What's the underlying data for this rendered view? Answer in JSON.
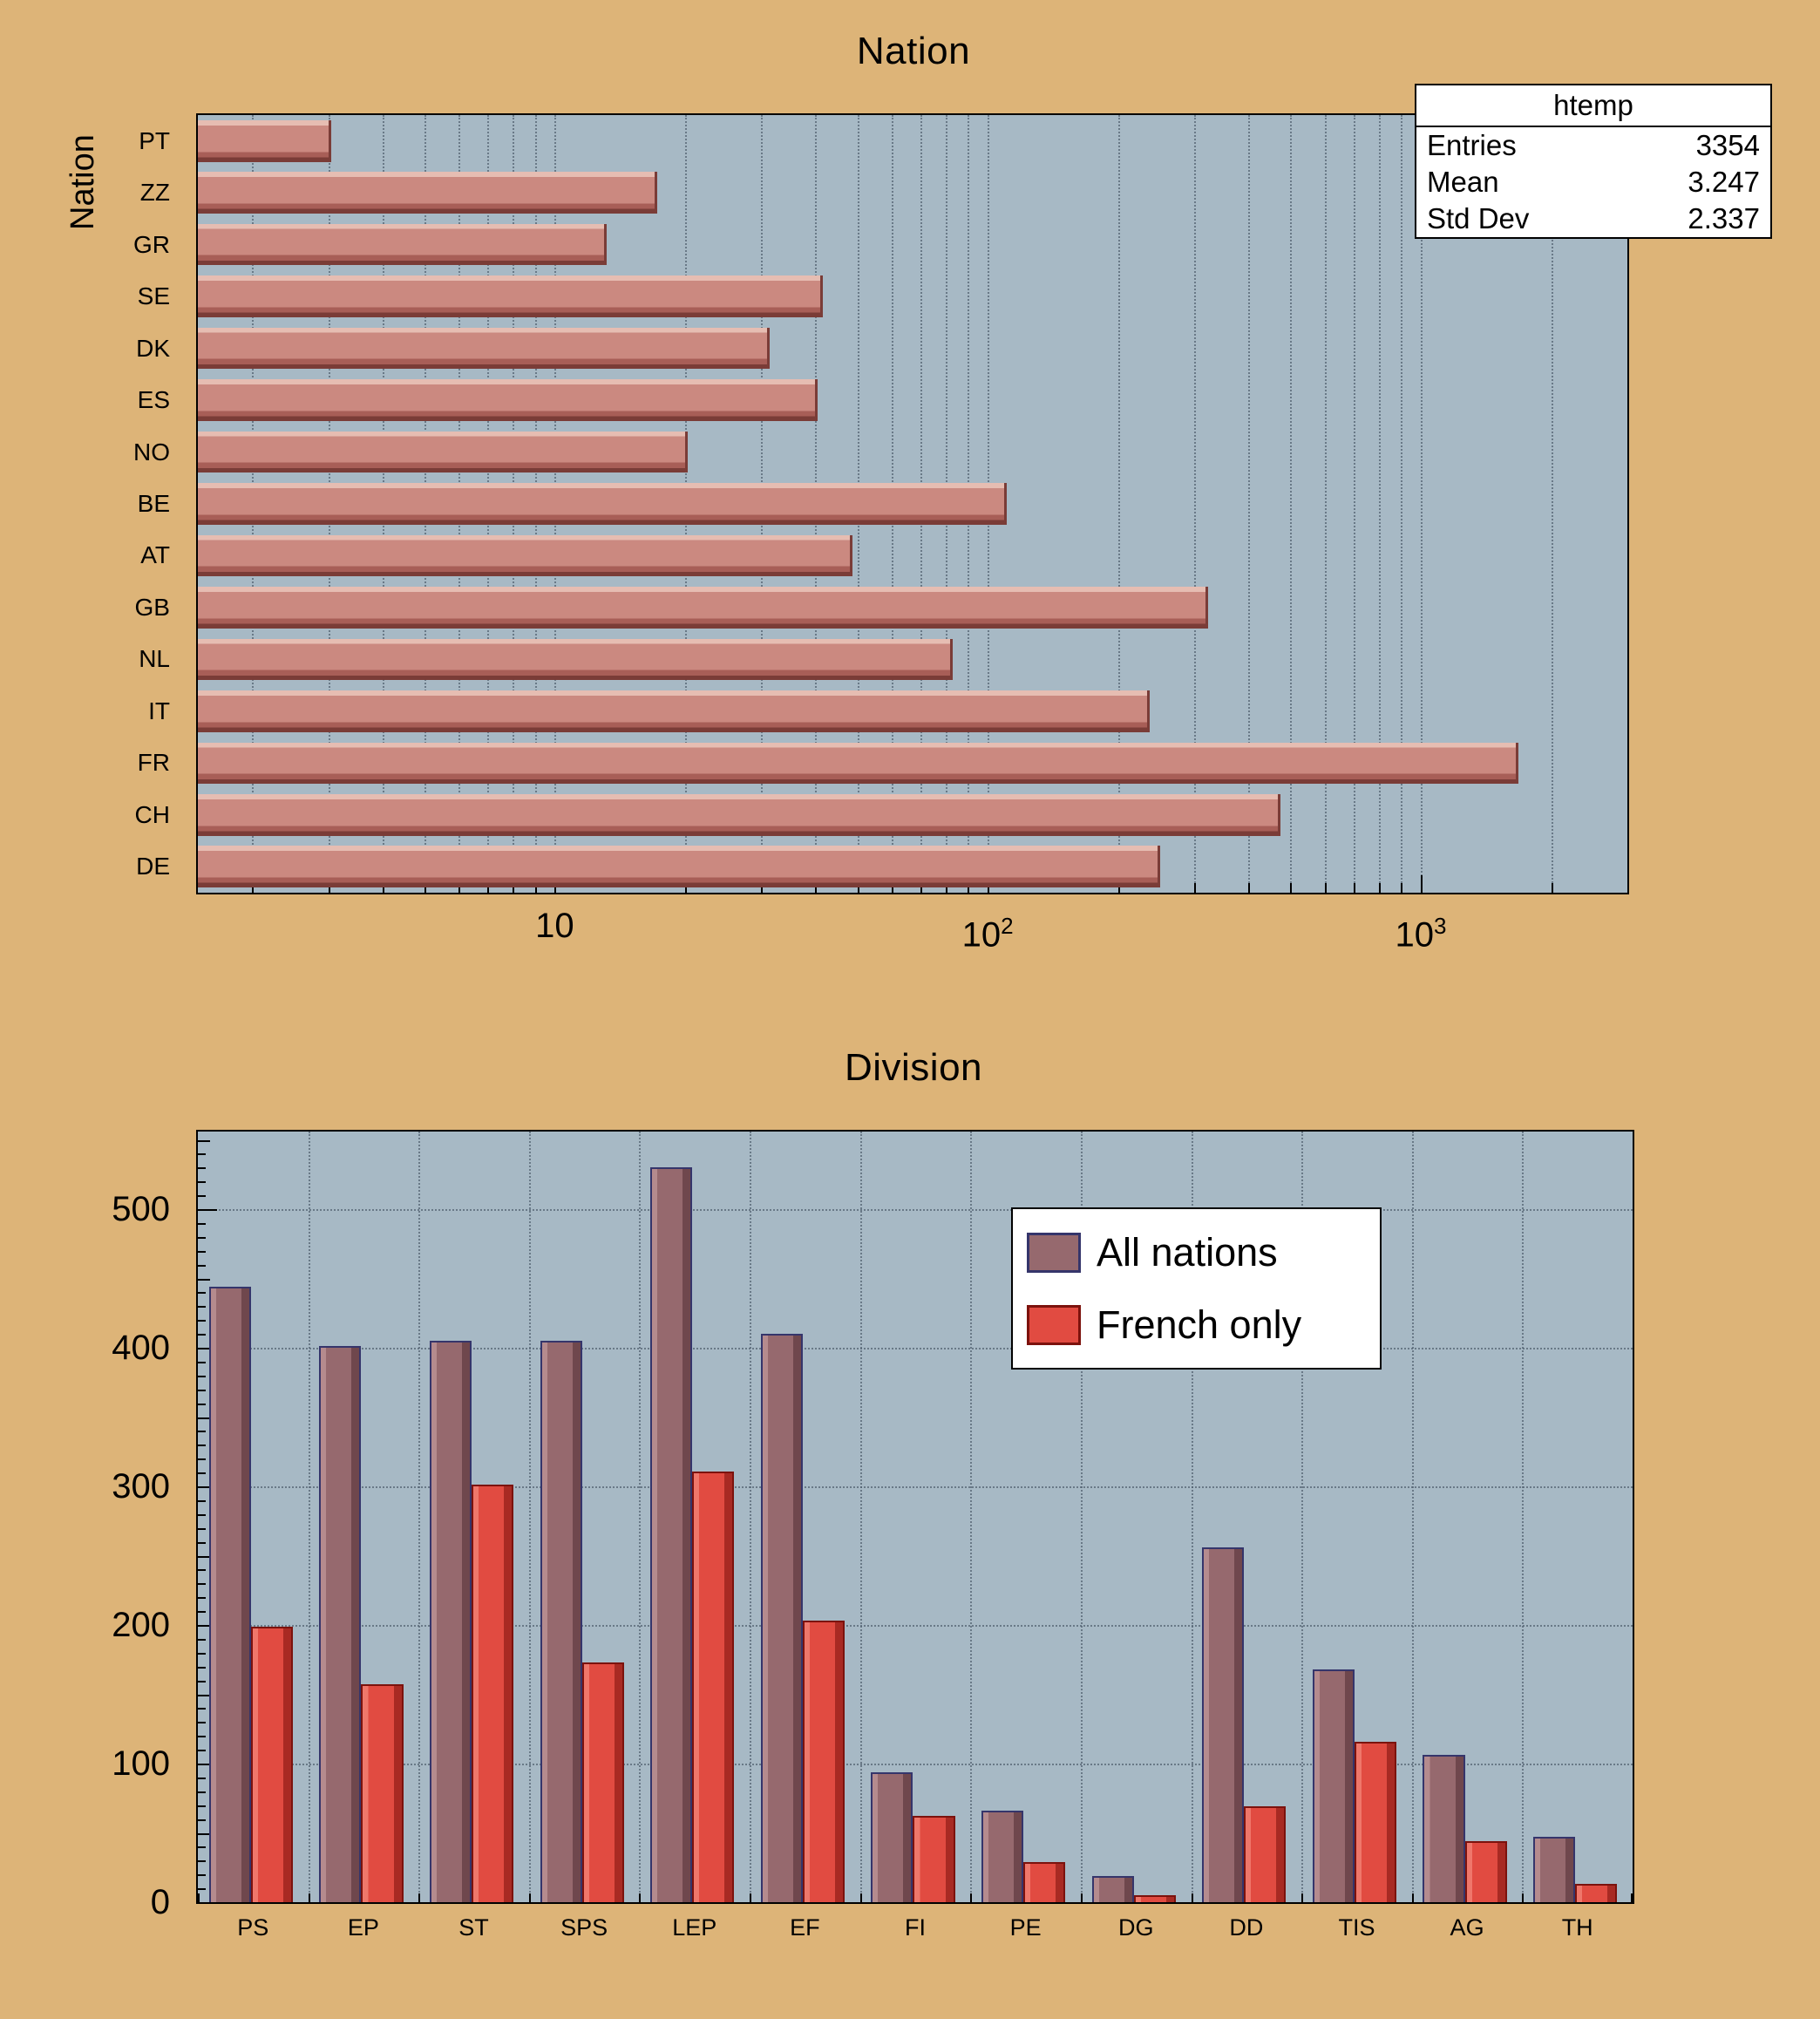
{
  "colors": {
    "page_bg": "#ddb478",
    "frame_bg": "#a7b9c5",
    "grid": "#4f5f6e",
    "stats_bg": "#ffffff",
    "nation_bar_fill": "#cb8980",
    "nation_bar_highlight": "#e6bdb2",
    "nation_bar_mid": "#a85e57",
    "nation_bar_shadow": "#7a3c37",
    "all_nations_fill": "#96696e",
    "all_nations_highlight": "#b58b8e",
    "all_nations_shadow": "#6f474d",
    "all_nations_border": "#35356b",
    "french_fill": "#e14b41",
    "french_highlight": "#ef776b",
    "french_shadow": "#a82a23",
    "french_border": "#7c120d"
  },
  "chart_data": [
    {
      "type": "bar",
      "orientation": "horizontal",
      "title": "Nation",
      "ylabel": "Nation",
      "x_scale": "log",
      "xlim": [
        1.5,
        3000
      ],
      "x_tick_values": [
        10,
        100,
        1000
      ],
      "x_tick_labels": [
        "10",
        "10^2",
        "10^3"
      ],
      "grid": true,
      "categories_top_to_bottom": [
        "PT",
        "ZZ",
        "GR",
        "SE",
        "DK",
        "ES",
        "NO",
        "BE",
        "AT",
        "GB",
        "NL",
        "IT",
        "FR",
        "CH",
        "DE"
      ],
      "values": [
        3,
        17,
        13,
        41,
        31,
        40,
        20,
        109,
        48,
        318,
        82,
        233,
        1660,
        468,
        247
      ],
      "stats_name": "htemp",
      "stats_rows": [
        {
          "label": "Entries",
          "value": "3354"
        },
        {
          "label": "Mean",
          "value": "3.247"
        },
        {
          "label": "Std Dev",
          "value": "2.337"
        }
      ],
      "stats": {
        "entries": 3354,
        "mean": 3.247,
        "std_dev": 2.337
      }
    },
    {
      "type": "bar",
      "orientation": "vertical",
      "title": "Division",
      "ylim": [
        0,
        556
      ],
      "y_major_ticks": [
        0,
        100,
        200,
        300,
        400,
        500
      ],
      "grid": true,
      "legend_position": "upper-middle-right",
      "categories": [
        "PS",
        "EP",
        "ST",
        "SPS",
        "LEP",
        "EF",
        "FI",
        "PE",
        "DG",
        "DD",
        "TIS",
        "AG",
        "TH"
      ],
      "series": [
        {
          "name": "All nations",
          "values": [
            444,
            401,
            405,
            405,
            530,
            410,
            94,
            66,
            19,
            256,
            168,
            106,
            47
          ]
        },
        {
          "name": "French only",
          "values": [
            199,
            157,
            301,
            173,
            311,
            203,
            62,
            29,
            5,
            69,
            116,
            44,
            13
          ]
        }
      ]
    }
  ]
}
